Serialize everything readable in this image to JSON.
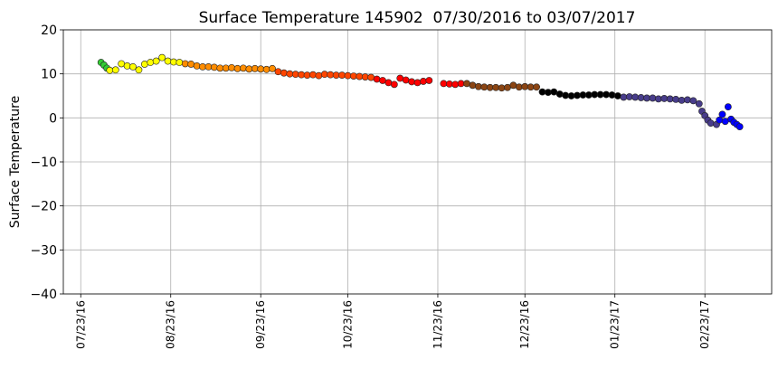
{
  "chart_data": {
    "type": "scatter",
    "title": "Surface Temperature 145902  07/30/2016 to 03/07/2017",
    "ylabel": "Surface Temperature",
    "xlim": [
      "2016-07-17",
      "2017-03-18"
    ],
    "xticks": [
      {
        "value": "2016-07-23",
        "label": "07/23/16"
      },
      {
        "value": "2016-08-23",
        "label": "08/23/16"
      },
      {
        "value": "2016-09-23",
        "label": "09/23/16"
      },
      {
        "value": "2016-10-23",
        "label": "10/23/16"
      },
      {
        "value": "2016-11-23",
        "label": "11/23/16"
      },
      {
        "value": "2016-12-23",
        "label": "12/23/16"
      },
      {
        "value": "2017-01-23",
        "label": "01/23/17"
      },
      {
        "value": "2017-02-23",
        "label": "02/23/17"
      }
    ],
    "ylim": [
      -40,
      20
    ],
    "yticks": [
      {
        "value": -40,
        "label": "−40"
      },
      {
        "value": -30,
        "label": "−30"
      },
      {
        "value": -20,
        "label": "−20"
      },
      {
        "value": -10,
        "label": "−10"
      },
      0,
      10,
      20
    ],
    "grid": true,
    "series": [
      {
        "color": "#33cc33",
        "x": [
          "2016-07-30",
          "2016-07-31",
          "2016-08-01"
        ],
        "values": [
          12.6,
          12.0,
          11.3
        ]
      },
      {
        "color": "#ffff00",
        "x": [
          "2016-08-02",
          "2016-08-04",
          "2016-08-06",
          "2016-08-08",
          "2016-08-10",
          "2016-08-12",
          "2016-08-14",
          "2016-08-16",
          "2016-08-18",
          "2016-08-20",
          "2016-08-22",
          "2016-08-24",
          "2016-08-26"
        ],
        "values": [
          10.8,
          10.9,
          12.3,
          11.8,
          11.6,
          10.9,
          12.2,
          12.6,
          12.9,
          13.7,
          12.9,
          12.7,
          12.6
        ]
      },
      {
        "color": "#ff8c00",
        "x": [
          "2016-08-28",
          "2016-08-30",
          "2016-09-01",
          "2016-09-03",
          "2016-09-05",
          "2016-09-07",
          "2016-09-09",
          "2016-09-11",
          "2016-09-13",
          "2016-09-15",
          "2016-09-17",
          "2016-09-19",
          "2016-09-21",
          "2016-09-23",
          "2016-09-25",
          "2016-09-27"
        ],
        "values": [
          12.3,
          12.2,
          11.8,
          11.6,
          11.6,
          11.5,
          11.3,
          11.3,
          11.4,
          11.2,
          11.3,
          11.1,
          11.2,
          11.1,
          11.0,
          11.2
        ]
      },
      {
        "color": "#ff4500",
        "x": [
          "2016-09-29",
          "2016-10-01",
          "2016-10-03",
          "2016-10-05",
          "2016-10-07",
          "2016-10-09",
          "2016-10-11",
          "2016-10-13",
          "2016-10-15",
          "2016-10-17",
          "2016-10-19",
          "2016-10-21",
          "2016-10-23",
          "2016-10-25",
          "2016-10-27",
          "2016-10-29",
          "2016-10-31"
        ],
        "values": [
          10.5,
          10.2,
          10.0,
          9.9,
          9.8,
          9.7,
          9.8,
          9.6,
          9.9,
          9.8,
          9.7,
          9.7,
          9.6,
          9.5,
          9.4,
          9.3,
          9.2
        ]
      },
      {
        "color": "#ff0000",
        "x": [
          "2016-11-02",
          "2016-11-04",
          "2016-11-06",
          "2016-11-08",
          "2016-11-10",
          "2016-11-12",
          "2016-11-14",
          "2016-11-16",
          "2016-11-18",
          "2016-11-20",
          "2016-11-25",
          "2016-11-27",
          "2016-11-29",
          "2016-12-01"
        ],
        "values": [
          8.8,
          8.5,
          8.0,
          7.6,
          9.0,
          8.6,
          8.2,
          8.0,
          8.3,
          8.5,
          7.8,
          7.7,
          7.6,
          7.8
        ]
      },
      {
        "color": "#8b4513",
        "x": [
          "2016-12-03",
          "2016-12-05",
          "2016-12-07",
          "2016-12-09",
          "2016-12-11",
          "2016-12-13",
          "2016-12-15",
          "2016-12-17",
          "2016-12-19",
          "2016-12-21",
          "2016-12-23",
          "2016-12-25",
          "2016-12-27"
        ],
        "values": [
          7.8,
          7.4,
          7.1,
          7.0,
          6.9,
          6.9,
          6.8,
          6.9,
          7.4,
          7.0,
          7.1,
          7.0,
          7.0
        ]
      },
      {
        "color": "#000000",
        "x": [
          "2016-12-29",
          "2016-12-31",
          "2017-01-02",
          "2017-01-04",
          "2017-01-06",
          "2017-01-08",
          "2017-01-10",
          "2017-01-12",
          "2017-01-14",
          "2017-01-16",
          "2017-01-18",
          "2017-01-20",
          "2017-01-22",
          "2017-01-24"
        ],
        "values": [
          5.9,
          5.8,
          5.9,
          5.4,
          5.1,
          5.0,
          5.1,
          5.2,
          5.2,
          5.3,
          5.3,
          5.3,
          5.2,
          5.0
        ]
      },
      {
        "color": "#483d8b",
        "x": [
          "2017-01-26",
          "2017-01-28",
          "2017-01-30",
          "2017-02-01",
          "2017-02-03",
          "2017-02-05",
          "2017-02-07",
          "2017-02-09",
          "2017-02-11",
          "2017-02-13",
          "2017-02-15",
          "2017-02-17",
          "2017-02-19",
          "2017-02-21",
          "2017-02-22",
          "2017-02-23",
          "2017-02-24",
          "2017-02-25",
          "2017-02-27"
        ],
        "values": [
          4.7,
          4.8,
          4.7,
          4.6,
          4.5,
          4.5,
          4.3,
          4.4,
          4.3,
          4.2,
          4.0,
          4.1,
          3.9,
          3.2,
          1.5,
          0.5,
          -0.5,
          -1.2,
          -1.5
        ]
      },
      {
        "color": "#0000ff",
        "x": [
          "2017-02-28",
          "2017-03-01",
          "2017-03-02",
          "2017-03-03",
          "2017-03-04",
          "2017-03-05",
          "2017-03-06",
          "2017-03-07"
        ],
        "values": [
          -0.5,
          0.8,
          -0.8,
          2.5,
          -0.3,
          -1.0,
          -1.5,
          -2.0
        ]
      }
    ]
  }
}
